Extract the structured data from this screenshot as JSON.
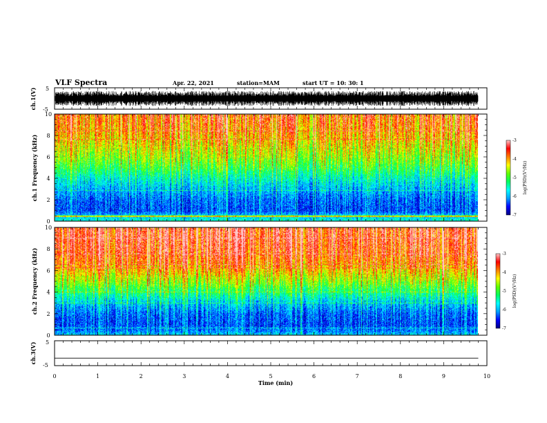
{
  "header": {
    "title": "VLF Spectra",
    "date": "Apr. 22, 2021",
    "station": "station=MAM",
    "start": "start  UT  =   10: 30: 1"
  },
  "chart_data": [
    {
      "type": "line",
      "name": "waveform-ch1",
      "ylabel": "ch.1(V)",
      "ylim": [
        -5,
        5
      ],
      "yticks": [
        5,
        -5
      ],
      "xlim": [
        0,
        10
      ],
      "note_values": "dense broadband noise within about -3.5 to 3.5 V over 0 to 9.8 min"
    },
    {
      "type": "heatmap",
      "name": "spectrogram-ch1",
      "ylabel": "ch.1 Frequency (kHz)",
      "ylim": [
        0,
        10
      ],
      "yticks": [
        0,
        2,
        4,
        6,
        8,
        10
      ],
      "xlim": [
        0,
        10
      ],
      "data_x_end": 9.8,
      "colorbar": {
        "label": "log(PSD)(V²/Hz)",
        "range": [
          -7,
          -3
        ],
        "ticks": [
          -3,
          -4,
          -5,
          -6,
          -7
        ]
      },
      "colormap": [
        "#000080",
        "#0000ff",
        "#00a0ff",
        "#00ffff",
        "#00ff60",
        "#60ff00",
        "#ffff00",
        "#ff8000",
        "#ff0000",
        "#ffc8c8"
      ],
      "level_profile": {
        "freq_khz": [
          0,
          0.4,
          1,
          2,
          3,
          4,
          5,
          6,
          7,
          8,
          9,
          10
        ],
        "log_psd": [
          -5.6,
          -5.8,
          -6.4,
          -6.3,
          -6.0,
          -5.6,
          -5.1,
          -4.7,
          -4.4,
          -4.1,
          -3.9,
          -3.8
        ]
      }
    },
    {
      "type": "heatmap",
      "name": "spectrogram-ch2",
      "ylabel": "ch.2 Frequency (kHz)",
      "ylim": [
        0,
        10
      ],
      "yticks": [
        0,
        2,
        4,
        6,
        8,
        10
      ],
      "xlim": [
        0,
        10
      ],
      "data_x_end": 9.8,
      "colorbar": {
        "label": "log(PSD)(V²/Hz)",
        "range": [
          -7,
          -3
        ],
        "ticks": [
          -3,
          -4,
          -5,
          -6,
          -7
        ]
      },
      "colormap": [
        "#000080",
        "#0000ff",
        "#00a0ff",
        "#00ffff",
        "#00ff60",
        "#60ff00",
        "#ffff00",
        "#ff8000",
        "#ff0000",
        "#ffc8c8"
      ],
      "level_profile": {
        "freq_khz": [
          0,
          0.4,
          1,
          2,
          3,
          4,
          5,
          6,
          7,
          8,
          9,
          10
        ],
        "log_psd": [
          -5.8,
          -6.2,
          -6.4,
          -6.3,
          -5.9,
          -5.3,
          -4.7,
          -4.2,
          -3.8,
          -3.6,
          -3.5,
          -3.5
        ]
      }
    },
    {
      "type": "line",
      "name": "waveform-ch3",
      "ylabel": "ch.3(V)",
      "ylim": [
        -5,
        5
      ],
      "yticks": [
        5,
        -5
      ],
      "xlim": [
        0,
        10
      ],
      "xlabel": "Time  (min)",
      "xticks": [
        0,
        1,
        2,
        3,
        4,
        5,
        6,
        7,
        8,
        9,
        10
      ],
      "x": [
        0,
        9.8
      ],
      "y": [
        -2,
        -2
      ]
    }
  ]
}
